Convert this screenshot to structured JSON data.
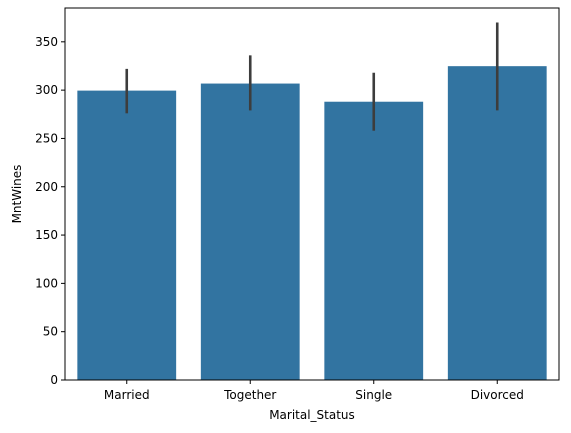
{
  "chart_data": {
    "type": "bar",
    "categories": [
      "Married",
      "Together",
      "Single",
      "Divorced"
    ],
    "values": [
      299.5,
      306.8,
      288.0,
      324.8
    ],
    "error_bars": [
      {
        "low": 276,
        "high": 322
      },
      {
        "low": 279,
        "high": 336
      },
      {
        "low": 258,
        "high": 318
      },
      {
        "low": 279,
        "high": 370
      }
    ],
    "title": "",
    "xlabel": "Marital_Status",
    "ylabel": "MntWines",
    "ylim": [
      0,
      385
    ],
    "yticks": [
      0,
      50,
      100,
      150,
      200,
      250,
      300,
      350
    ],
    "grid": false,
    "colors": {
      "bar": "#3274a1",
      "error_bar": "#3d3d3d",
      "axis": "#000000"
    }
  }
}
